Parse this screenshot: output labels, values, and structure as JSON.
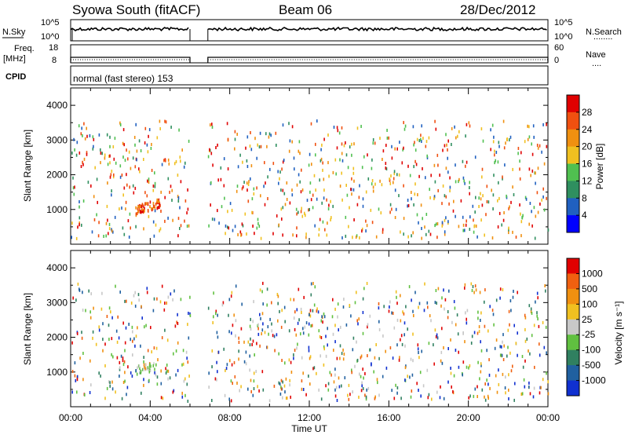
{
  "header": {
    "station": "Syowa South (fitACF)",
    "beam": "Beam 06",
    "date": "28/Dec/2012"
  },
  "nsky_panel": {
    "left_label": "N.Sky",
    "left_ticks": [
      "10^5",
      "10^0"
    ],
    "right_ticks": [
      "10^5",
      "10^0"
    ],
    "right_label": "N.Search",
    "right_legend": "........"
  },
  "freq_panel": {
    "left_label_top": "Freq.",
    "left_label_bottom": "[MHz]",
    "left_ticks": [
      "18",
      "8"
    ],
    "right_ticks": [
      "60",
      "0"
    ],
    "right_label": "Nave",
    "right_legend": "...."
  },
  "cpid_panel": {
    "label": "CPID",
    "text": "normal (fast stereo) 153"
  },
  "x_axis": {
    "label": "Time UT",
    "ticks": [
      "00:00",
      "04:00",
      "08:00",
      "12:00",
      "16:00",
      "20:00",
      "00:00"
    ]
  },
  "chart_data": [
    {
      "type": "heatmap",
      "name": "power",
      "ylabel": "Slant Range [km]",
      "xlabel": "Time UT",
      "yticks": [
        "1000",
        "2000",
        "3000",
        "4000"
      ],
      "ylim": [
        0,
        4500
      ],
      "xlim_hours": [
        0,
        24
      ],
      "data_gap_hours": [
        6.0,
        6.9
      ],
      "colorbar": {
        "label": "Power [dB]",
        "ticks": [
          "4",
          "8",
          "12",
          "16",
          "20",
          "24",
          "28"
        ],
        "range": [
          0,
          30
        ],
        "colors": [
          "#0000ff",
          "#2060c0",
          "#2f8f5f",
          "#50c050",
          "#f0c020",
          "#f09010",
          "#f05010",
          "#e00000"
        ]
      }
    },
    {
      "type": "heatmap",
      "name": "velocity",
      "ylabel": "Slant Range [km]",
      "xlabel": "Time UT",
      "yticks": [
        "1000",
        "2000",
        "3000",
        "4000"
      ],
      "ylim": [
        0,
        4500
      ],
      "xlim_hours": [
        0,
        24
      ],
      "data_gap_hours": [
        6.0,
        6.9
      ],
      "colorbar": {
        "label": "Velocity [m s⁻¹]",
        "ticks": [
          "1000",
          "500",
          "100",
          "25",
          "-25",
          "-100",
          "-500",
          "-1000"
        ],
        "colors": [
          "#1030d0",
          "#2060a0",
          "#308060",
          "#60c040",
          "#c8c8c8",
          "#f0c020",
          "#f09010",
          "#f06010",
          "#e00000"
        ]
      }
    }
  ]
}
